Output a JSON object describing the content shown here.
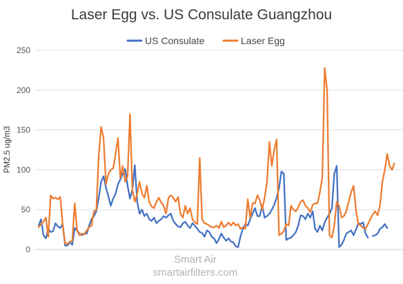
{
  "chart_data": {
    "type": "line",
    "title": "Laser Egg vs. US Consulate Guangzhou",
    "xlabel": "",
    "ylabel": "PM2.5 ug/m3",
    "ylim": [
      0,
      250
    ],
    "yticks": [
      0,
      50,
      100,
      150,
      200,
      250
    ],
    "grid": "horizontal",
    "legend_position": "top",
    "watermark": [
      "Smart Air",
      "smartairfilters.com"
    ],
    "series": [
      {
        "name": "US Consulate",
        "color": "#4472C4",
        "values": [
          30,
          38,
          18,
          14,
          26,
          22,
          23,
          33,
          29,
          27,
          32,
          5,
          5,
          9,
          6,
          27,
          24,
          20,
          18,
          20,
          20,
          30,
          38,
          42,
          48,
          65,
          85,
          92,
          78,
          67,
          55,
          64,
          70,
          82,
          88,
          95,
          101,
          80,
          64,
          75,
          106,
          60,
          45,
          50,
          42,
          45,
          38,
          36,
          40,
          33,
          36,
          38,
          42,
          40,
          43,
          45,
          36,
          32,
          29,
          28,
          33,
          35,
          30,
          27,
          33,
          30,
          26,
          22,
          21,
          16,
          24,
          22,
          16,
          14,
          8,
          13,
          20,
          15,
          11,
          14,
          10,
          9,
          4,
          3,
          17,
          26,
          32,
          30,
          38,
          45,
          52,
          42,
          42,
          55,
          40,
          42,
          45,
          50,
          56,
          65,
          77,
          98,
          95,
          12,
          14,
          15,
          18,
          22,
          30,
          43,
          42,
          38,
          45,
          40,
          48,
          26,
          22,
          30,
          24,
          34,
          40,
          45,
          52,
          95,
          105,
          3,
          6,
          12,
          20,
          22,
          24,
          18,
          25,
          33,
          32,
          34,
          20,
          15,
          null,
          17,
          18,
          20,
          26,
          28,
          32,
          27,
          null,
          null,
          null,
          null,
          null,
          null
        ]
      },
      {
        "name": "Laser Egg",
        "color": "#ED7D31",
        "values": [
          28,
          32,
          35,
          40,
          16,
          68,
          64,
          65,
          63,
          66,
          32,
          8,
          7,
          10,
          11,
          58,
          24,
          18,
          20,
          19,
          24,
          28,
          30,
          48,
          50,
          118,
          154,
          140,
          82,
          95,
          100,
          102,
          120,
          140,
          90,
          105,
          85,
          92,
          170,
          75,
          60,
          70,
          85,
          70,
          65,
          80,
          60,
          54,
          52,
          60,
          65,
          59,
          55,
          45,
          65,
          68,
          65,
          60,
          66,
          45,
          40,
          55,
          45,
          52,
          38,
          34,
          32,
          115,
          38,
          33,
          32,
          30,
          28,
          28,
          30,
          27,
          35,
          28,
          30,
          34,
          30,
          34,
          30,
          32,
          26,
          28,
          26,
          63,
          40,
          58,
          58,
          68,
          62,
          50,
          65,
          85,
          135,
          105,
          125,
          138,
          18,
          20,
          23,
          32,
          30,
          55,
          50,
          48,
          53,
          60,
          62,
          55,
          52,
          47,
          56,
          58,
          58,
          72,
          90,
          228,
          200,
          18,
          15,
          30,
          60,
          55,
          40,
          42,
          48,
          60,
          72,
          80,
          50,
          32,
          30,
          27,
          26,
          32,
          38,
          44,
          48,
          43,
          55,
          85,
          100,
          120,
          105,
          100,
          108
        ]
      }
    ]
  }
}
